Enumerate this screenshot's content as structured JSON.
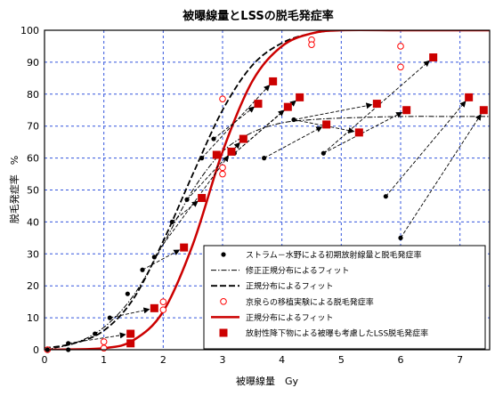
{
  "chart_data": {
    "type": "scatter",
    "title": "被曝線量とLSSの脱毛発症率",
    "xlabel": "被曝線量　Gy",
    "ylabel": "脱毛発症率　%",
    "xlim": [
      0,
      7.5
    ],
    "ylim": [
      0,
      100
    ],
    "xticks": [
      "0",
      "1",
      "2",
      "3",
      "4",
      "5",
      "6",
      "7"
    ],
    "yticks": [
      "0",
      "10",
      "20",
      "30",
      "40",
      "50",
      "60",
      "70",
      "80",
      "90",
      "100"
    ],
    "grid": true,
    "legend_position": "bottom-right",
    "series": [
      {
        "name": "ストラム－水野による初期放射線量と脱毛発症率",
        "marker": "black-dot",
        "color": "#000000",
        "points": [
          [
            0.4,
            2
          ],
          [
            0.85,
            5
          ],
          [
            1.1,
            10
          ],
          [
            1.4,
            17.5
          ],
          [
            1.65,
            25
          ],
          [
            1.85,
            29
          ],
          [
            2.15,
            40
          ],
          [
            2.4,
            47
          ],
          [
            2.65,
            60
          ],
          [
            2.85,
            66
          ],
          [
            3.2,
            61.5
          ],
          [
            3.7,
            60
          ],
          [
            4.2,
            72
          ],
          [
            4.7,
            61.5
          ],
          [
            5.75,
            48
          ],
          [
            6.0,
            35
          ],
          [
            0.05,
            0
          ],
          [
            0.4,
            0
          ]
        ]
      },
      {
        "name": "修正正規分布によるフィット",
        "style": "dashdot",
        "color": "#000000",
        "points": [
          [
            0,
            0
          ],
          [
            0.5,
            2
          ],
          [
            1.0,
            7
          ],
          [
            1.5,
            17
          ],
          [
            2.0,
            33
          ],
          [
            2.5,
            50
          ],
          [
            3.0,
            62
          ],
          [
            3.5,
            68
          ],
          [
            4.0,
            71
          ],
          [
            4.5,
            72
          ],
          [
            5.0,
            72.5
          ],
          [
            6.0,
            73
          ],
          [
            7.0,
            73
          ],
          [
            7.5,
            73
          ]
        ]
      },
      {
        "name": "正規分布によるフィット",
        "style": "dashed",
        "color": "#000000",
        "points": [
          [
            0,
            0.5
          ],
          [
            0.5,
            2
          ],
          [
            1.0,
            6
          ],
          [
            1.5,
            16
          ],
          [
            2.0,
            34
          ],
          [
            2.5,
            55
          ],
          [
            3.0,
            75
          ],
          [
            3.5,
            89
          ],
          [
            4.0,
            96
          ],
          [
            4.5,
            99
          ],
          [
            5.0,
            100
          ],
          [
            6.0,
            100
          ],
          [
            7.0,
            100
          ],
          [
            7.5,
            100
          ]
        ]
      },
      {
        "name": "京泉らの移植実験による脱毛発症率",
        "marker": "red-open-circle",
        "color": "#ff0000",
        "points": [
          [
            0.05,
            0
          ],
          [
            1.0,
            2.5
          ],
          [
            1.0,
            0.5
          ],
          [
            2.0,
            15
          ],
          [
            2.0,
            12.5
          ],
          [
            3.0,
            78.5
          ],
          [
            3.0,
            57
          ],
          [
            3.0,
            55
          ],
          [
            4.5,
            97
          ],
          [
            4.5,
            95.5
          ],
          [
            6.0,
            95
          ],
          [
            6.0,
            88.5
          ]
        ]
      },
      {
        "name": "正規分布によるフィット",
        "style": "solid",
        "color": "#cc0000",
        "points": [
          [
            0,
            0
          ],
          [
            1.0,
            0.5
          ],
          [
            1.5,
            3
          ],
          [
            2.0,
            12
          ],
          [
            2.5,
            33
          ],
          [
            3.0,
            62
          ],
          [
            3.5,
            84
          ],
          [
            4.0,
            95
          ],
          [
            4.5,
            99
          ],
          [
            5.0,
            100
          ],
          [
            6.0,
            100
          ],
          [
            7.0,
            100
          ],
          [
            7.5,
            100
          ]
        ]
      },
      {
        "name": "放射性降下物による被曝も考慮したLSS脱毛発症率",
        "marker": "red-square",
        "color": "#cc0000",
        "points": [
          [
            1.45,
            2
          ],
          [
            1.45,
            5
          ],
          [
            1.85,
            13
          ],
          [
            2.35,
            32
          ],
          [
            2.65,
            47.5
          ],
          [
            2.9,
            61
          ],
          [
            3.35,
            66
          ],
          [
            3.6,
            77
          ],
          [
            3.85,
            84
          ],
          [
            4.1,
            76
          ],
          [
            4.3,
            79
          ],
          [
            4.75,
            70.5
          ],
          [
            5.3,
            68
          ],
          [
            5.6,
            77
          ],
          [
            6.1,
            75
          ],
          [
            6.55,
            91.5
          ],
          [
            7.15,
            79
          ],
          [
            7.4,
            75
          ],
          [
            3.15,
            62
          ]
        ]
      }
    ],
    "arrows": [
      {
        "from": [
          0.4,
          2
        ],
        "to": [
          1.45,
          5
        ]
      },
      {
        "from": [
          1.1,
          10
        ],
        "to": [
          1.85,
          13
        ]
      },
      {
        "from": [
          1.65,
          25
        ],
        "to": [
          2.35,
          32
        ]
      },
      {
        "from": [
          2.15,
          40
        ],
        "to": [
          2.65,
          47.5
        ]
      },
      {
        "from": [
          2.4,
          47
        ],
        "to": [
          3.35,
          66
        ]
      },
      {
        "from": [
          2.65,
          60
        ],
        "to": [
          3.85,
          84
        ]
      },
      {
        "from": [
          2.85,
          66
        ],
        "to": [
          3.6,
          77
        ]
      },
      {
        "from": [
          3.2,
          61.5
        ],
        "to": [
          4.3,
          79
        ]
      },
      {
        "from": [
          3.2,
          61.5
        ],
        "to": [
          4.1,
          76
        ]
      },
      {
        "from": [
          3.7,
          60
        ],
        "to": [
          4.75,
          70.5
        ]
      },
      {
        "from": [
          4.2,
          72
        ],
        "to": [
          5.6,
          77
        ]
      },
      {
        "from": [
          4.2,
          72
        ],
        "to": [
          5.3,
          68
        ]
      },
      {
        "from": [
          4.7,
          61.5
        ],
        "to": [
          6.55,
          91.5
        ]
      },
      {
        "from": [
          4.7,
          61.5
        ],
        "to": [
          6.1,
          75
        ]
      },
      {
        "from": [
          5.75,
          48
        ],
        "to": [
          7.15,
          79
        ]
      },
      {
        "from": [
          6.0,
          35
        ],
        "to": [
          7.4,
          75
        ]
      },
      {
        "from": [
          2.0,
          33
        ],
        "to": [
          3.15,
          62
        ]
      }
    ]
  }
}
